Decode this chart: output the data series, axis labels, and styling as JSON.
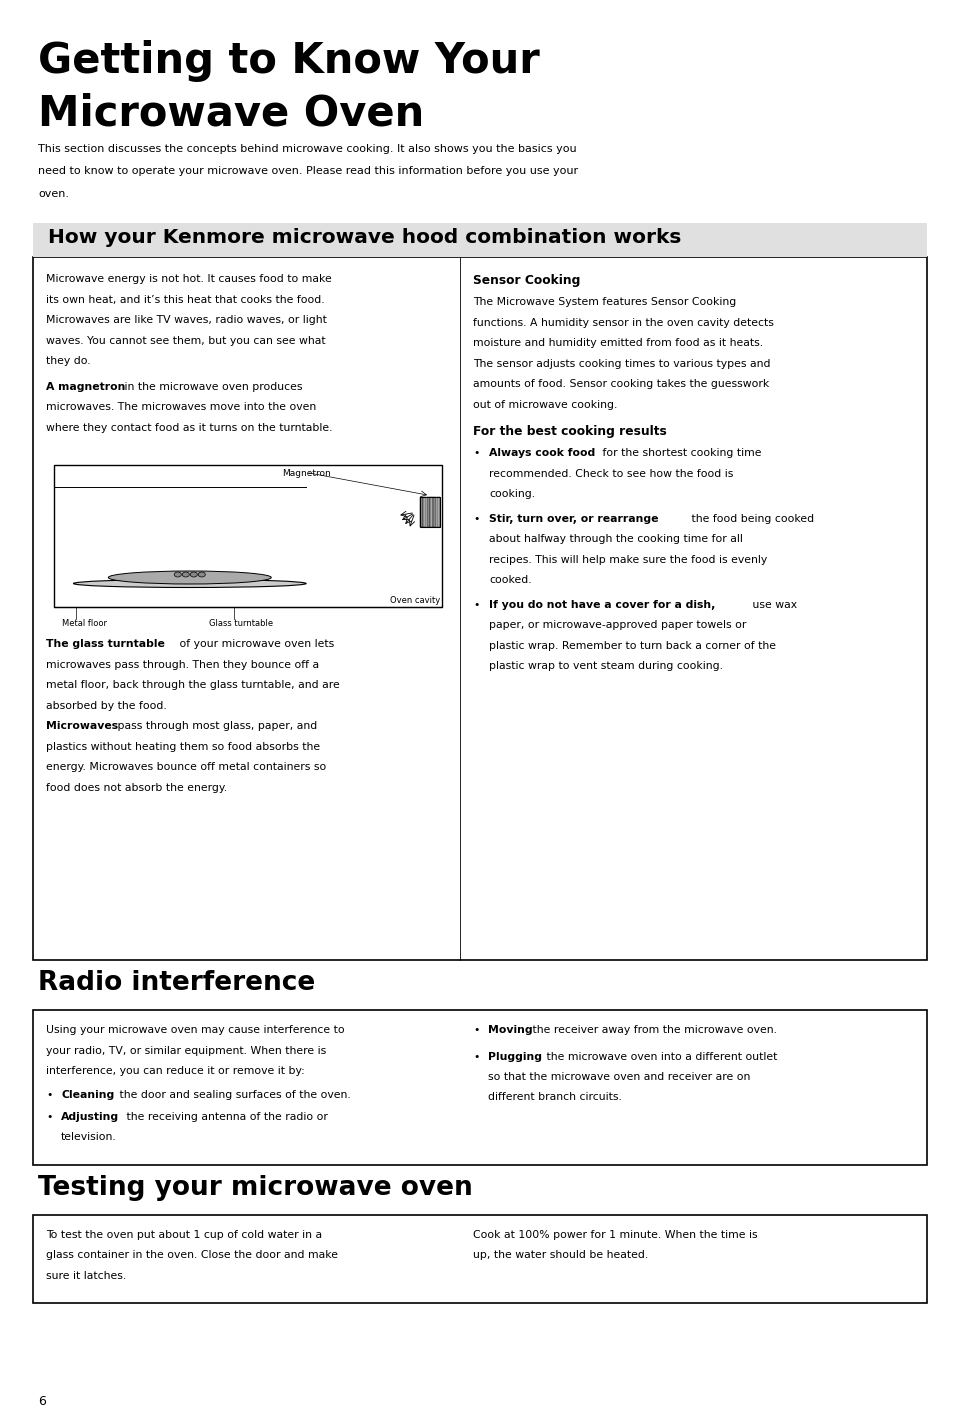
{
  "bg_color": "#ffffff",
  "page_width": 9.54,
  "page_height": 14.15,
  "dpi": 100,
  "main_title_line1": "Getting to Know Your",
  "main_title_line2": "Microwave Oven",
  "intro_text_lines": [
    "This section discusses the concepts behind microwave cooking. It also shows you the basics you",
    "need to know to operate your microwave oven. Please read this information before you use your",
    "oven."
  ],
  "section1_title": "How your Kenmore microwave hood combination works",
  "left_para1_lines": [
    "Microwave energy is not hot. It causes food to make",
    "its own heat, and it’s this heat that cooks the food.",
    "Microwaves are like TV waves, radio waves, or light",
    "waves. You cannot see them, but you can see what",
    "they do."
  ],
  "magnetron_bold": "A magnetron",
  "magnetron_rest_lines": [
    " in the microwave oven produces",
    "microwaves. The microwaves move into the oven",
    "where they contact food as it turns on the turntable."
  ],
  "magnetron_label": "Magnetron",
  "metal_floor_label": "Metal floor",
  "glass_turntable_label": "Glass turntable",
  "oven_cavity_label": "Oven cavity",
  "glass_bold": "The glass turntable",
  "glass_rest_lines": [
    " of your microwave oven lets",
    "microwaves pass through. Then they bounce off a",
    "metal floor, back through the glass turntable, and are",
    "absorbed by the food."
  ],
  "microwaves_bold": "Microwaves",
  "microwaves_rest_lines": [
    " pass through most glass, paper, and",
    "plastics without heating them so food absorbs the",
    "energy. Microwaves bounce off metal containers so",
    "food does not absorb the energy."
  ],
  "sensor_title": "Sensor Cooking",
  "sensor_para_lines": [
    "The Microwave System features Sensor Cooking",
    "functions. A humidity sensor in the oven cavity detects",
    "moisture and humidity emitted from food as it heats.",
    "The sensor adjusts cooking times to various types and",
    "amounts of food. Sensor cooking takes the guesswork",
    "out of microwave cooking."
  ],
  "best_results_title": "For the best cooking results",
  "bullets_right": [
    {
      "bold": "Always cook food",
      "rest_lines": [
        " for the shortest cooking time",
        "recommended. Check to see how the food is",
        "cooking."
      ]
    },
    {
      "bold": "Stir, turn over, or rearrange",
      "rest_lines": [
        " the food being cooked",
        "about halfway through the cooking time for all",
        "recipes. This will help make sure the food is evenly",
        "cooked."
      ]
    },
    {
      "bold": "If you do not have a cover for a dish,",
      "rest_lines": [
        " use wax",
        "paper, or microwave-approved paper towels or",
        "plastic wrap. Remember to turn back a corner of the",
        "plastic wrap to vent steam during cooking."
      ]
    }
  ],
  "section2_title": "Radio interference",
  "radio_left_lines": [
    "Using your microwave oven may cause interference to",
    "your radio, TV, or similar equipment. When there is",
    "interference, you can reduce it or remove it by:"
  ],
  "radio_left_bullets": [
    {
      "bold": "Cleaning",
      "rest_lines": [
        " the door and sealing surfaces of the oven."
      ]
    },
    {
      "bold": "Adjusting",
      "rest_lines": [
        " the receiving antenna of the radio or",
        "television."
      ]
    }
  ],
  "radio_right_bullets": [
    {
      "bold": "Moving",
      "rest_lines": [
        " the receiver away from the microwave oven."
      ]
    },
    {
      "bold": "Plugging",
      "rest_lines": [
        " the microwave oven into a different outlet",
        "so that the microwave oven and receiver are on",
        "different branch circuits."
      ]
    }
  ],
  "section3_title": "Testing your microwave oven",
  "test_left_lines": [
    "To test the oven put about 1 cup of cold water in a",
    "glass container in the oven. Close the door and make",
    "sure it latches."
  ],
  "test_right_lines": [
    "Cook at 100% power for 1 minute. When the time is",
    "up, the water should be heated."
  ],
  "page_number": "6"
}
